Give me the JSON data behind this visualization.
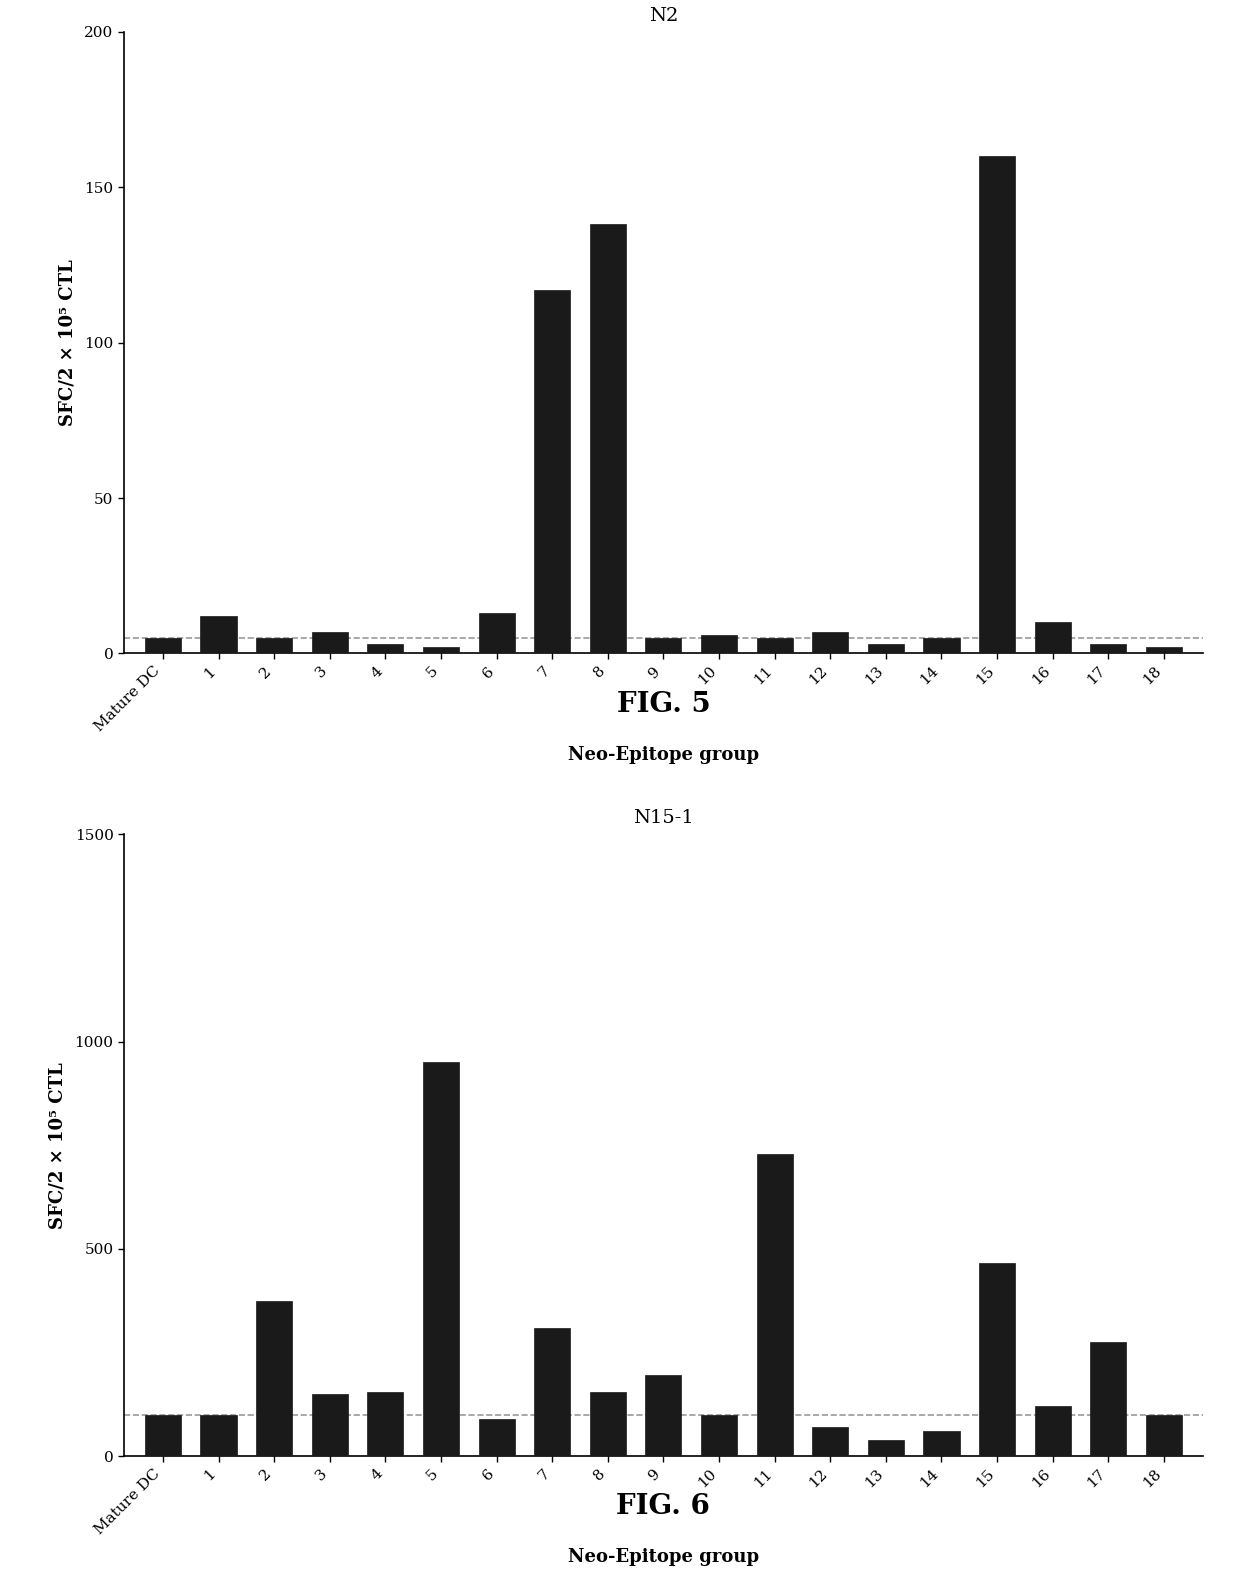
{
  "fig5": {
    "title": "N2",
    "categories": [
      "Mature DC",
      "1",
      "2",
      "3",
      "4",
      "5",
      "6",
      "7",
      "8",
      "9",
      "10",
      "11",
      "12",
      "13",
      "14",
      "15",
      "16",
      "17",
      "18"
    ],
    "values": [
      5,
      12,
      5,
      7,
      3,
      2,
      13,
      117,
      138,
      5,
      6,
      5,
      7,
      3,
      5,
      160,
      10,
      3,
      2
    ],
    "dashed_line": 5,
    "ylim": [
      0,
      200
    ],
    "yticks": [
      0,
      50,
      100,
      150,
      200
    ],
    "ylabel": "SFC/2 × 10⁵ CTL",
    "xlabel": "Neo-Epitope group",
    "bar_color": "#1a1a1a",
    "dashed_color": "#888888",
    "fig_label": "FIG. 5"
  },
  "fig6": {
    "title": "N15-1",
    "categories": [
      "Mature DC",
      "1",
      "2",
      "3",
      "4",
      "5",
      "6",
      "7",
      "8",
      "9",
      "10",
      "11",
      "12",
      "13",
      "14",
      "15",
      "16",
      "17",
      "18"
    ],
    "values": [
      100,
      100,
      375,
      150,
      155,
      950,
      90,
      310,
      155,
      195,
      100,
      730,
      70,
      40,
      60,
      465,
      120,
      275,
      100
    ],
    "dashed_line": 100,
    "ylim": [
      0,
      1500
    ],
    "yticks": [
      0,
      500,
      1000,
      1500
    ],
    "ylabel": "SFC/2 × 10⁵ CTL",
    "xlabel": "Neo-Epitope group",
    "bar_color": "#1a1a1a",
    "dashed_color": "#888888",
    "fig_label": "FIG. 6"
  },
  "background_color": "#ffffff",
  "fig_label_fontsize": 20,
  "title_fontsize": 14,
  "axis_label_fontsize": 13,
  "tick_fontsize": 11
}
